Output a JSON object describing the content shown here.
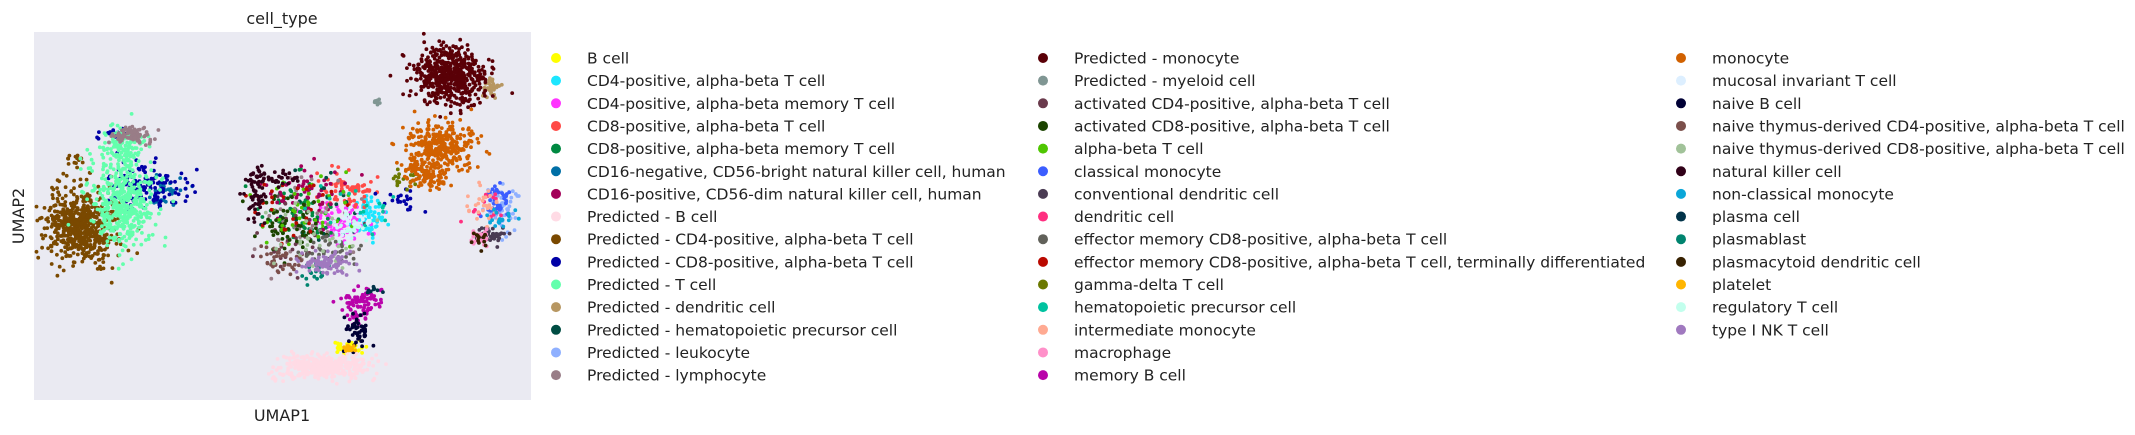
{
  "chart_data": {
    "type": "scatter",
    "title": "cell_type",
    "xlabel": "UMAP1",
    "ylabel": "UMAP2",
    "xlim": [
      0,
      100
    ],
    "ylim": [
      0,
      100
    ],
    "grid": false,
    "ticks": false,
    "background": "#eaeaf2",
    "legend_position": "right",
    "legend_columns": 3,
    "series": [
      {
        "name": "B cell",
        "color": "#ffff00",
        "clusters": [
          [
            63,
            14,
            2.0,
            1.2,
            45
          ]
        ]
      },
      {
        "name": "CD4-positive, alpha-beta T cell",
        "color": "#1ce6ff",
        "clusters": [
          [
            67.5,
            50,
            2.0,
            3.5,
            70
          ]
        ]
      },
      {
        "name": "CD4-positive, alpha-beta memory T cell",
        "color": "#ff34ff",
        "clusters": [
          [
            61,
            48,
            4.0,
            3.0,
            90
          ]
        ]
      },
      {
        "name": "CD8-positive, alpha-beta T cell",
        "color": "#ff4a46",
        "clusters": [
          [
            63,
            57,
            3.5,
            3.0,
            70
          ]
        ]
      },
      {
        "name": "CD8-positive, alpha-beta memory T cell",
        "color": "#008941",
        "clusters": [
          [
            53,
            50,
            5.0,
            6.0,
            80
          ]
        ]
      },
      {
        "name": "CD16-negative, CD56-bright natural killer cell, human",
        "color": "#006fa6",
        "clusters": [
          [
            26,
            57,
            2.5,
            2.5,
            30
          ]
        ]
      },
      {
        "name": "CD16-positive, CD56-dim natural killer cell, human",
        "color": "#a30059",
        "clusters": [
          [
            55,
            56,
            6.0,
            5.0,
            60
          ]
        ]
      },
      {
        "name": "Predicted - B cell",
        "color": "#ffdbe5",
        "clusters": [
          [
            58,
            9,
            5.5,
            2.0,
            420
          ]
        ]
      },
      {
        "name": "Predicted - CD4-positive, alpha-beta T cell",
        "color": "#7a4900",
        "clusters": [
          [
            9.5,
            47,
            4.5,
            6.5,
            620
          ],
          [
            8.5,
            65,
            1.2,
            1.2,
            12
          ]
        ]
      },
      {
        "name": "Predicted - CD8-positive, alpha-beta T cell",
        "color": "#0000a6",
        "clusters": [
          [
            23,
            58,
            5.0,
            3.5,
            130
          ],
          [
            16,
            72,
            2.0,
            1.2,
            25
          ],
          [
            74,
            54,
            2.5,
            2.0,
            20
          ]
        ]
      },
      {
        "name": "Predicted - T cell",
        "color": "#63ffac",
        "clusters": [
          [
            18,
            53,
            4.0,
            7.0,
            420
          ],
          [
            18,
            67,
            3.0,
            4.0,
            140
          ]
        ]
      },
      {
        "name": "Predicted - dendritic cell",
        "color": "#b79762",
        "clusters": [
          [
            92.5,
            85,
            1.0,
            1.5,
            40
          ]
        ]
      },
      {
        "name": "Predicted - hematopoietic precursor cell",
        "color": "#004d43",
        "clusters": [
          [
            57,
            51,
            6.0,
            7.0,
            20
          ]
        ]
      },
      {
        "name": "Predicted - leukocyte",
        "color": "#8fb0ff",
        "clusters": [
          [
            94,
            52,
            2.0,
            3.5,
            60
          ]
        ]
      },
      {
        "name": "Predicted - lymphocyte",
        "color": "#997d87",
        "clusters": [
          [
            19.5,
            72,
            2.5,
            1.5,
            90
          ],
          [
            54,
            48,
            6.0,
            8.0,
            40
          ]
        ]
      },
      {
        "name": "Predicted - monocyte",
        "color": "#5a0007",
        "clusters": [
          [
            84,
            88,
            4.5,
            4.5,
            550
          ]
        ]
      },
      {
        "name": "Predicted - myeloid cell",
        "color": "#809693",
        "clusters": [
          [
            69,
            81,
            0.6,
            0.5,
            8
          ]
        ]
      },
      {
        "name": "activated CD4-positive, alpha-beta T cell",
        "color": "#6a3a4c",
        "clusters": [
          [
            53,
            45,
            6.0,
            7.0,
            30
          ]
        ]
      },
      {
        "name": "activated CD8-positive, alpha-beta T cell",
        "color": "#1b4400",
        "clusters": [
          [
            51,
            48,
            4.0,
            5.0,
            60
          ]
        ]
      },
      {
        "name": "alpha-beta T cell",
        "color": "#4fc601",
        "clusters": [
          [
            56,
            50,
            6.0,
            6.0,
            40
          ]
        ]
      },
      {
        "name": "classical monocyte",
        "color": "#3b5dff",
        "clusters": [
          [
            93.5,
            54,
            1.5,
            3.0,
            40
          ]
        ]
      },
      {
        "name": "conventional dendritic cell",
        "color": "#4a3b53",
        "clusters": [
          [
            92,
            45,
            2.0,
            2.0,
            40
          ]
        ]
      },
      {
        "name": "dendritic cell",
        "color": "#ff2f80",
        "clusters": [
          [
            91,
            52,
            2.5,
            3.0,
            15
          ]
        ]
      },
      {
        "name": "effector memory CD8-positive, alpha-beta T cell",
        "color": "#61615a",
        "clusters": [
          [
            60,
            40,
            4.0,
            3.0,
            40
          ]
        ]
      },
      {
        "name": "effector memory CD8-positive, alpha-beta T cell, terminally differentiated",
        "color": "#ba0900",
        "clusters": [
          [
            52,
            52,
            6.0,
            6.0,
            30
          ]
        ]
      },
      {
        "name": "gamma-delta T cell",
        "color": "#6b7900",
        "clusters": [
          [
            74,
            60,
            4.0,
            2.0,
            20
          ]
        ]
      },
      {
        "name": "hematopoietic precursor cell",
        "color": "#00c2a0",
        "clusters": [
          [
            65,
            52,
            5.0,
            5.0,
            20
          ]
        ]
      },
      {
        "name": "intermediate monocyte",
        "color": "#ffaa92",
        "clusters": [
          [
            90,
            53,
            2.0,
            3.0,
            30
          ]
        ]
      },
      {
        "name": "macrophage",
        "color": "#ff90c9",
        "clusters": [
          [
            90,
            44,
            1.5,
            1.5,
            30
          ]
        ]
      },
      {
        "name": "memory B cell",
        "color": "#b903aa",
        "clusters": [
          [
            66,
            27,
            3.0,
            2.0,
            70
          ],
          [
            65,
            23,
            2.0,
            2.0,
            30
          ]
        ]
      },
      {
        "name": "monocyte",
        "color": "#d16100",
        "clusters": [
          [
            82,
            69,
            4.5,
            4.0,
            320
          ],
          [
            80,
            60,
            2.5,
            2.0,
            60
          ],
          [
            76,
            63,
            2.0,
            1.5,
            40
          ]
        ]
      },
      {
        "name": "mucosal invariant T cell",
        "color": "#ddefff",
        "clusters": [
          [
            64,
            48,
            3.0,
            3.0,
            30
          ]
        ]
      },
      {
        "name": "naive B cell",
        "color": "#000035",
        "clusters": [
          [
            65,
            18,
            1.5,
            3.0,
            50
          ]
        ]
      },
      {
        "name": "naive thymus-derived CD4-positive, alpha-beta T cell",
        "color": "#7b4f4b",
        "clusters": [
          [
            50,
            38,
            3.0,
            2.5,
            40
          ]
        ]
      },
      {
        "name": "naive thymus-derived CD8-positive, alpha-beta T cell",
        "color": "#a1c299",
        "clusters": [
          [
            57,
            45,
            5.0,
            5.0,
            30
          ]
        ]
      },
      {
        "name": "natural killer cell",
        "color": "#300018",
        "clusters": [
          [
            45,
            56,
            1.5,
            5.0,
            60
          ],
          [
            49,
            60,
            2.5,
            1.5,
            30
          ]
        ]
      },
      {
        "name": "non-classical monocyte",
        "color": "#0aa6d8",
        "clusters": [
          [
            94,
            50,
            1.5,
            2.0,
            20
          ]
        ]
      },
      {
        "name": "plasma cell",
        "color": "#013349",
        "clusters": [
          [
            68,
            30,
            1.0,
            1.0,
            10
          ]
        ]
      },
      {
        "name": "plasmablast",
        "color": "#00846f",
        "clusters": [
          [
            57,
            35,
            2.0,
            2.0,
            20
          ]
        ]
      },
      {
        "name": "plasmacytoid dendritic cell",
        "color": "#372101",
        "clusters": [
          [
            90,
            44,
            1.5,
            1.5,
            15
          ]
        ]
      },
      {
        "name": "platelet",
        "color": "#ffb500",
        "clusters": [
          [
            63.5,
            14,
            1.0,
            1.0,
            15
          ]
        ]
      },
      {
        "name": "regulatory T cell",
        "color": "#c2ffed",
        "clusters": [
          [
            62,
            46,
            3.0,
            3.0,
            20
          ]
        ]
      },
      {
        "name": "type I NK T cell",
        "color": "#a079bf",
        "clusters": [
          [
            59,
            37,
            3.5,
            2.0,
            90
          ]
        ]
      }
    ]
  }
}
